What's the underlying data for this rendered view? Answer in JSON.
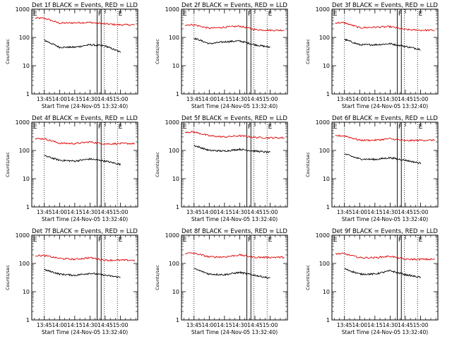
{
  "figure": {
    "series_names": [
      "BLACK = Events",
      "RED = LLD"
    ],
    "xlabel": "Start Time (24-Nov-05 13:32:40)",
    "ylabel": "Counts/sec",
    "yscale": "log",
    "ylim": [
      1,
      1000
    ],
    "y_ticks": [
      "1",
      "10",
      "100",
      "1000"
    ],
    "x_ticks": [
      "13:45",
      "14:00",
      "14:15",
      "14:30",
      "14:45",
      "15:00"
    ],
    "x_tick_minutes": [
      825,
      840,
      855,
      870,
      885,
      900
    ],
    "x_range_minutes": [
      812.67,
      917
    ],
    "dotted_lines_minutes": [
      825,
      884,
      897
    ],
    "marker_box_minutes": [
      877,
      881
    ],
    "event_labels": [
      "E",
      "F",
      "E"
    ],
    "event_label_minutes": [
      814,
      878,
      898
    ],
    "colors": {
      "events": "#000000",
      "lld": "#e00000",
      "axes": "#000000"
    }
  },
  "chart_data": [
    {
      "type": "line",
      "title": "Det 1f BLACK = Events, RED = LLD",
      "xlabel": "Start Time (24-Nov-05 13:32:40)",
      "ylabel": "Counts/sec",
      "yscale": "log",
      "ylim": [
        1,
        1000
      ],
      "x": [
        "13:45",
        "14:00",
        "14:15",
        "14:30",
        "14:45",
        "15:00"
      ],
      "series": [
        {
          "name": "LLD",
          "color": "#e00000",
          "values": [
            480,
            320,
            330,
            340,
            300,
            280
          ]
        },
        {
          "name": "Events",
          "color": "#000000",
          "values": [
            80,
            45,
            45,
            55,
            50,
            30
          ]
        }
      ]
    },
    {
      "type": "line",
      "title": "Det 2f BLACK = Events, RED = LLD",
      "xlabel": "Start Time (24-Nov-05 13:32:40)",
      "ylabel": "Counts/sec",
      "yscale": "log",
      "ylim": [
        1,
        1000
      ],
      "x": [
        "13:45",
        "14:00",
        "14:15",
        "14:30",
        "14:45",
        "15:00"
      ],
      "series": [
        {
          "name": "LLD",
          "color": "#e00000",
          "values": [
            280,
            210,
            230,
            250,
            190,
            180
          ]
        },
        {
          "name": "Events",
          "color": "#000000",
          "values": [
            95,
            60,
            70,
            75,
            55,
            45
          ]
        }
      ]
    },
    {
      "type": "line",
      "title": "Det 3f BLACK = Events, RED = LLD",
      "xlabel": "Start Time (24-Nov-05 13:32:40)",
      "ylabel": "Counts/sec",
      "yscale": "log",
      "ylim": [
        1,
        1000
      ],
      "x": [
        "13:45",
        "14:00",
        "14:15",
        "14:30",
        "14:45",
        "15:00"
      ],
      "series": [
        {
          "name": "LLD",
          "color": "#e00000",
          "values": [
            330,
            220,
            230,
            240,
            190,
            180
          ]
        },
        {
          "name": "Events",
          "color": "#000000",
          "values": [
            85,
            55,
            55,
            60,
            48,
            38
          ]
        }
      ]
    },
    {
      "type": "line",
      "title": "Det 4f BLACK = Events, RED = LLD",
      "xlabel": "Start Time (24-Nov-05 13:32:40)",
      "ylabel": "Counts/sec",
      "yscale": "log",
      "ylim": [
        1,
        1000
      ],
      "x": [
        "13:45",
        "14:00",
        "14:15",
        "14:30",
        "14:45",
        "15:00"
      ],
      "series": [
        {
          "name": "LLD",
          "color": "#e00000",
          "values": [
            260,
            180,
            175,
            200,
            170,
            175
          ]
        },
        {
          "name": "Events",
          "color": "#000000",
          "values": [
            65,
            45,
            42,
            50,
            42,
            32
          ]
        }
      ]
    },
    {
      "type": "line",
      "title": "Det 5f BLACK = Events, RED = LLD",
      "xlabel": "Start Time (24-Nov-05 13:32:40)",
      "ylabel": "Counts/sec",
      "yscale": "log",
      "ylim": [
        1,
        1000
      ],
      "x": [
        "13:45",
        "14:00",
        "14:15",
        "14:30",
        "14:45",
        "15:00"
      ],
      "series": [
        {
          "name": "LLD",
          "color": "#e00000",
          "values": [
            450,
            330,
            300,
            330,
            290,
            280
          ]
        },
        {
          "name": "Events",
          "color": "#000000",
          "values": [
            150,
            100,
            95,
            110,
            95,
            85
          ]
        }
      ]
    },
    {
      "type": "line",
      "title": "Det 6f BLACK = Events, RED = LLD",
      "xlabel": "Start Time (24-Nov-05 13:32:40)",
      "ylabel": "Counts/sec",
      "yscale": "log",
      "ylim": [
        1,
        1000
      ],
      "x": [
        "13:45",
        "14:00",
        "14:15",
        "14:30",
        "14:45",
        "15:00"
      ],
      "series": [
        {
          "name": "LLD",
          "color": "#e00000",
          "values": [
            330,
            230,
            230,
            260,
            220,
            230
          ]
        },
        {
          "name": "Events",
          "color": "#000000",
          "values": [
            75,
            50,
            48,
            55,
            45,
            35
          ]
        }
      ]
    },
    {
      "type": "line",
      "title": "Det 7f BLACK = Events, RED = LLD",
      "xlabel": "Start Time (24-Nov-05 13:32:40)",
      "ylabel": "Counts/sec",
      "yscale": "log",
      "ylim": [
        1,
        1000
      ],
      "x": [
        "13:45",
        "14:00",
        "14:15",
        "14:30",
        "14:45",
        "15:00"
      ],
      "series": [
        {
          "name": "LLD",
          "color": "#e00000",
          "values": [
            190,
            150,
            140,
            160,
            130,
            130
          ]
        },
        {
          "name": "Events",
          "color": "#000000",
          "values": [
            60,
            42,
            38,
            45,
            38,
            32
          ]
        }
      ]
    },
    {
      "type": "line",
      "title": "Det 8f BLACK = Events, RED = LLD",
      "xlabel": "Start Time (24-Nov-05 13:32:40)",
      "ylabel": "Counts/sec",
      "yscale": "log",
      "ylim": [
        1,
        1000
      ],
      "x": [
        "13:45",
        "14:00",
        "14:15",
        "14:30",
        "14:45",
        "15:00"
      ],
      "series": [
        {
          "name": "LLD",
          "color": "#e00000",
          "values": [
            230,
            170,
            170,
            200,
            165,
            165
          ]
        },
        {
          "name": "Events",
          "color": "#000000",
          "values": [
            65,
            42,
            40,
            48,
            38,
            30
          ]
        }
      ]
    },
    {
      "type": "line",
      "title": "Det 9f BLACK = Events, RED = LLD",
      "xlabel": "Start Time (24-Nov-05 13:32:40)",
      "ylabel": "Counts/sec",
      "yscale": "log",
      "ylim": [
        1,
        1000
      ],
      "x": [
        "13:45",
        "14:00",
        "14:15",
        "14:30",
        "14:45",
        "15:00"
      ],
      "series": [
        {
          "name": "LLD",
          "color": "#e00000",
          "values": [
            220,
            160,
            160,
            180,
            140,
            140
          ]
        },
        {
          "name": "Events",
          "color": "#000000",
          "values": [
            65,
            42,
            42,
            55,
            40,
            32
          ]
        }
      ]
    }
  ]
}
